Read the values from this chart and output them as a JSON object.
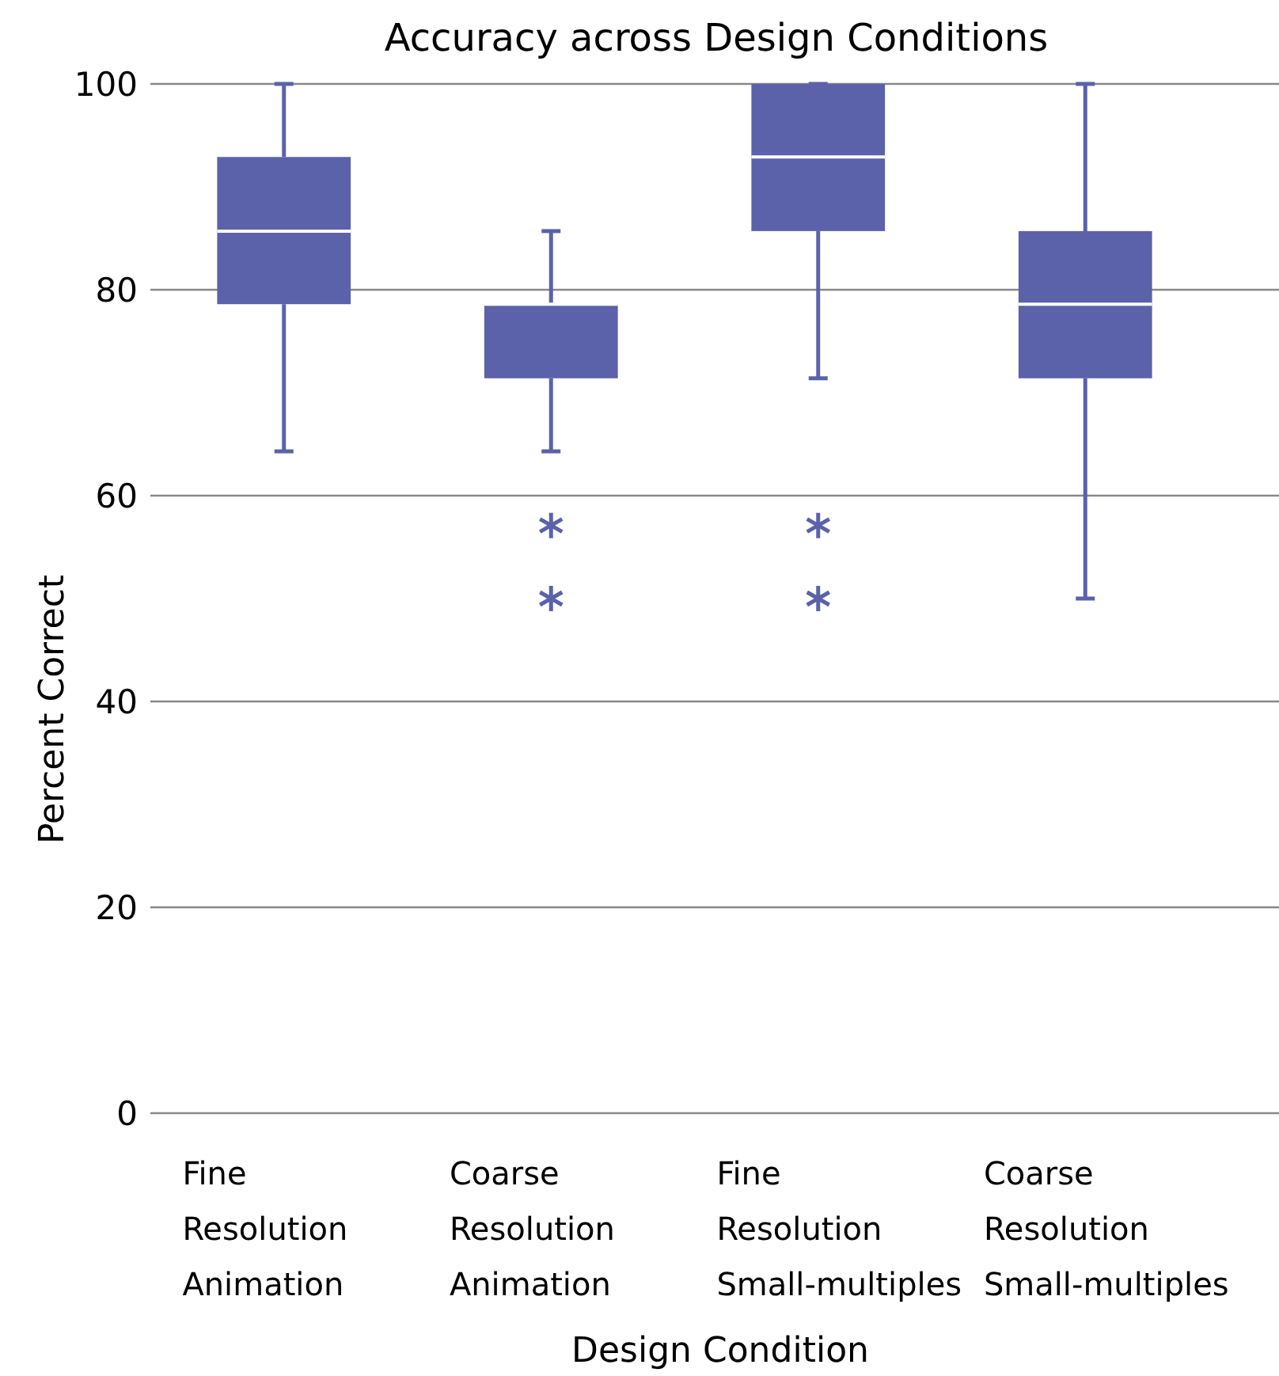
{
  "chart_data": {
    "type": "box",
    "title": "Accuracy across Design Conditions",
    "xlabel": "Design Condition",
    "ylabel": "Percent Correct",
    "categories": [
      "Fine Resolution Animation",
      "Coarse Resolution Animation",
      "Fine Resolution Small-multiples",
      "Coarse Resolution Small-multiples"
    ],
    "boxes": [
      {
        "low": 64.3,
        "q1": 78.6,
        "median": 85.7,
        "q3": 92.9,
        "high": 100
      },
      {
        "low": 64.3,
        "q1": 71.4,
        "median": 78.6,
        "q3": 78.6,
        "high": 85.7,
        "outliers": [
          57.1,
          50
        ]
      },
      {
        "low": 71.4,
        "q1": 85.7,
        "median": 92.9,
        "q3": 100,
        "high": 100,
        "outliers": [
          57.1,
          50
        ]
      },
      {
        "low": 50,
        "q1": 71.4,
        "median": 78.6,
        "q3": 85.7,
        "high": 100
      }
    ],
    "color": "#5b62aa",
    "ylim": [
      0,
      100
    ],
    "yticks": [
      0,
      20,
      40,
      60,
      80,
      100
    ],
    "grid": true
  }
}
